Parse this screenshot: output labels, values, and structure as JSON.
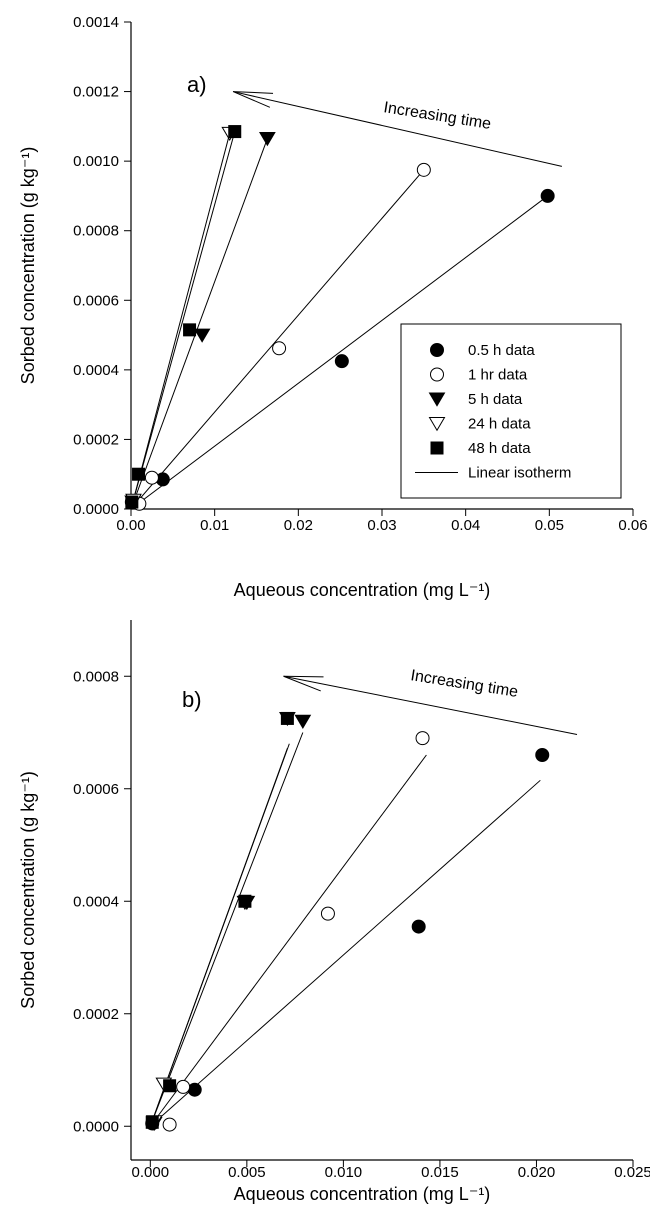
{
  "chart_data": [
    {
      "type": "scatter",
      "panel_label": "a)",
      "xlabel": "Aqueous concentration (mg L⁻¹)",
      "ylabel": "Sorbed concentration (g kg⁻¹)",
      "xlim": [
        0,
        0.06
      ],
      "ylim": [
        0,
        0.0014
      ],
      "xticks": [
        "0.00",
        "0.01",
        "0.02",
        "0.03",
        "0.04",
        "0.05",
        "0.06"
      ],
      "yticks": [
        "0.0000",
        "0.0002",
        "0.0004",
        "0.0006",
        "0.0008",
        "0.0010",
        "0.0012",
        "0.0014"
      ],
      "annotation": "Increasing time",
      "legend_position": "lower-right",
      "legend": [
        "0.5 h data",
        "1 hr data",
        "5 h data",
        "24 h data",
        "48 h data",
        "Linear isotherm"
      ],
      "series": [
        {
          "name": "0.5 h data",
          "marker": "filled-circle",
          "points": [
            [
              0.0001,
              2e-05
            ],
            [
              0.0038,
              8.5e-05
            ],
            [
              0.0252,
              0.000425
            ],
            [
              0.0498,
              0.0009
            ]
          ],
          "fit": [
            [
              0,
              0
            ],
            [
              0.0498,
              0.0009
            ]
          ]
        },
        {
          "name": "1 hr data",
          "marker": "open-circle",
          "points": [
            [
              0.001,
              1.5e-05
            ],
            [
              0.0025,
              9e-05
            ],
            [
              0.0177,
              0.000462
            ],
            [
              0.035,
              0.000975
            ]
          ],
          "fit": [
            [
              0,
              0
            ],
            [
              0.035,
              0.000975
            ]
          ]
        },
        {
          "name": "5 h data",
          "marker": "filled-triangle-down",
          "points": [
            [
              0.0002,
              2e-05
            ],
            [
              0.0085,
              0.0005
            ],
            [
              0.0163,
              0.001065
            ]
          ],
          "fit": [
            [
              0,
              0
            ],
            [
              0.0163,
              0.001065
            ]
          ]
        },
        {
          "name": "24 h data",
          "marker": "open-triangle-down",
          "points": [
            [
              0.0003,
              2.5e-05
            ],
            [
              0.0118,
              0.00108
            ]
          ],
          "fit": [
            [
              0,
              0
            ],
            [
              0.0118,
              0.00108
            ]
          ]
        },
        {
          "name": "48 h data",
          "marker": "filled-square",
          "points": [
            [
              0.0001,
              2e-05
            ],
            [
              0.0009,
              0.0001
            ],
            [
              0.007,
              0.000515
            ],
            [
              0.0124,
              0.001085
            ]
          ],
          "fit": [
            [
              0,
              0
            ],
            [
              0.0124,
              0.001085
            ]
          ]
        }
      ],
      "arrow": {
        "from": [
          0.0515,
          0.000985
        ],
        "to": [
          0.0122,
          0.0012
        ]
      }
    },
    {
      "type": "scatter",
      "panel_label": "b)",
      "xlabel": "Aqueous concentration (mg L⁻¹)",
      "ylabel": "Sorbed concentration (g kg⁻¹)",
      "xlim": [
        -0.001,
        0.025
      ],
      "ylim": [
        -6e-05,
        0.0009
      ],
      "xticks": [
        "0.000",
        "0.005",
        "0.010",
        "0.015",
        "0.020",
        "0.025"
      ],
      "yticks": [
        "0.0000",
        "0.0002",
        "0.0004",
        "0.0006",
        "0.0008"
      ],
      "annotation": "Increasing time",
      "series": [
        {
          "name": "0.5 h data",
          "marker": "filled-circle",
          "points": [
            [
              0.0001,
              5e-06
            ],
            [
              0.0023,
              6.5e-05
            ],
            [
              0.0139,
              0.000355
            ],
            [
              0.0203,
              0.00066
            ]
          ],
          "fit": [
            [
              0,
              0
            ],
            [
              0.0202,
              0.000615
            ]
          ]
        },
        {
          "name": "1 hr data",
          "marker": "open-circle",
          "points": [
            [
              0.001,
              3e-06
            ],
            [
              0.0017,
              7e-05
            ],
            [
              0.0092,
              0.000378
            ],
            [
              0.0141,
              0.00069
            ]
          ],
          "fit": [
            [
              0,
              0
            ],
            [
              0.0143,
              0.00066
            ]
          ]
        },
        {
          "name": "5 h data",
          "marker": "filled-triangle-down",
          "points": [
            [
              0.0002,
              5e-06
            ],
            [
              0.005,
              0.000398
            ],
            [
              0.0079,
              0.00072
            ]
          ],
          "fit": [
            [
              0,
              0
            ],
            [
              0.0079,
              0.0007
            ]
          ]
        },
        {
          "name": "24 h data",
          "marker": "open-triangle-down",
          "points": [
            [
              0.0002,
              8e-06
            ],
            [
              0.0007,
              7.5e-05
            ],
            [
              0.0049,
              0.000398
            ],
            [
              0.0071,
              0.000725
            ]
          ],
          "fit": [
            [
              0,
              0
            ],
            [
              0.0072,
              0.00068
            ]
          ]
        },
        {
          "name": "48 h data",
          "marker": "filled-square",
          "points": [
            [
              0.0001,
              7e-06
            ],
            [
              0.001,
              7.2e-05
            ],
            [
              0.0049,
              0.0004
            ],
            [
              0.0071,
              0.000725
            ]
          ],
          "fit": [
            [
              0,
              0
            ],
            [
              0.0071,
              0.000672
            ]
          ]
        }
      ],
      "arrow": {
        "from": [
          0.0221,
          0.0006965
        ],
        "to": [
          0.0069,
          0.0008
        ]
      }
    }
  ]
}
